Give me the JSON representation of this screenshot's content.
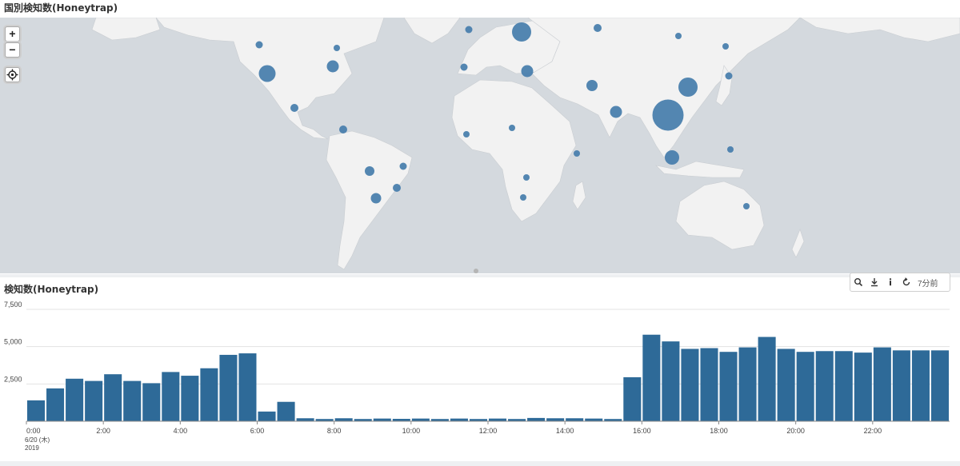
{
  "map_panel": {
    "title": "国別検知数(Honeytrap)",
    "controls": {
      "zoom_in": "+",
      "zoom_out": "−"
    },
    "bubble_color": "#4a7fad",
    "land_color": "#f2f2f2",
    "sea_color": "#d4d9de"
  },
  "chart_panel": {
    "title": "検知数(Honeytrap)",
    "toolbar": {
      "time_ago": "7分前",
      "icons": [
        "search-icon",
        "download-icon",
        "info-icon",
        "refresh-icon"
      ]
    }
  },
  "chart_data": {
    "type": "bar",
    "ylim": [
      0,
      7500
    ],
    "y_ticks": [
      "7,500",
      "5,000",
      "2,500"
    ],
    "x_tick_labels": [
      "0:00",
      "2:00",
      "4:00",
      "6:00",
      "8:00",
      "10:00",
      "12:00",
      "14:00",
      "16:00",
      "18:00",
      "20:00",
      "22:00"
    ],
    "x_sub_label_1": "6/20 (木)",
    "x_sub_label_2": "2019",
    "bar_color": "#2e6a98",
    "values": [
      1400,
      2200,
      2850,
      2700,
      3150,
      2700,
      2550,
      3300,
      3050,
      3550,
      4450,
      4550,
      650,
      1300,
      200,
      150,
      200,
      150,
      180,
      160,
      180,
      150,
      180,
      150,
      180,
      150,
      220,
      200,
      200,
      180,
      150,
      2950,
      5800,
      5350,
      4850,
      4900,
      4650,
      4950,
      5650,
      4850,
      4650,
      4700,
      4700,
      4600,
      4950,
      4750,
      4750,
      4750
    ]
  }
}
